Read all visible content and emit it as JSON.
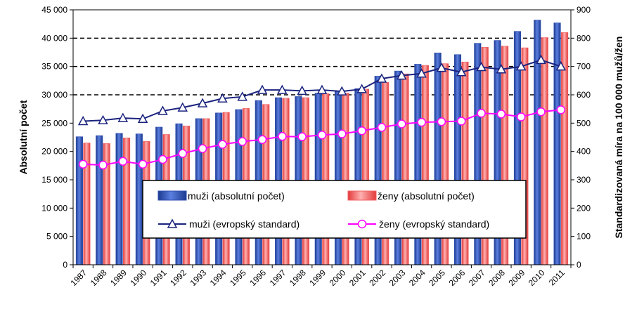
{
  "chart_data": {
    "type": "bar",
    "categories": [
      "1987",
      "1988",
      "1989",
      "1990",
      "1991",
      "1992",
      "1993",
      "1994",
      "1995",
      "1996",
      "1997",
      "1998",
      "1999",
      "2000",
      "2001",
      "2002",
      "2003",
      "2004",
      "2005",
      "2006",
      "2007",
      "2008",
      "2009",
      "2010",
      "2011"
    ],
    "series": [
      {
        "name": "muži (absolutní počet)",
        "type": "bar",
        "axis": "left",
        "color": "#2e4fb0",
        "values": [
          22600,
          22800,
          23200,
          23100,
          24300,
          24900,
          25800,
          26800,
          27400,
          29000,
          29500,
          29700,
          30300,
          30600,
          31100,
          33300,
          34200,
          35400,
          37400,
          37100,
          39100,
          39600,
          41200,
          43200,
          42700
        ]
      },
      {
        "name": "ženy (absolutní počet)",
        "type": "bar",
        "axis": "left",
        "color": "#f26060",
        "values": [
          21500,
          21400,
          22400,
          21800,
          23000,
          24500,
          25800,
          26900,
          27600,
          28300,
          29400,
          29500,
          30200,
          30300,
          31000,
          32200,
          33700,
          35200,
          35500,
          35800,
          38400,
          38600,
          38300,
          40100,
          41000
        ]
      },
      {
        "name": "muži (evropský standard)",
        "type": "line",
        "axis": "right",
        "color": "#1a237e",
        "marker": "triangle",
        "values": [
          507,
          510,
          518,
          515,
          543,
          555,
          570,
          587,
          593,
          617,
          617,
          614,
          617,
          612,
          620,
          657,
          668,
          675,
          695,
          680,
          698,
          690,
          700,
          723,
          700
        ]
      },
      {
        "name": "ženy (evropský standard)",
        "type": "line",
        "axis": "right",
        "color": "#ff00ff",
        "marker": "circle",
        "values": [
          355,
          352,
          365,
          355,
          372,
          393,
          410,
          425,
          435,
          442,
          453,
          452,
          458,
          462,
          473,
          485,
          497,
          503,
          505,
          507,
          535,
          532,
          522,
          540,
          547
        ]
      }
    ],
    "y_left": {
      "label": "Absolutní počet",
      "range": [
        0,
        45000
      ],
      "ticks": [
        "0",
        "5 000",
        "10 000",
        "15 000",
        "20 000",
        "25 000",
        "30 000",
        "35 000",
        "40 000",
        "45 000"
      ],
      "tick_values": [
        0,
        5000,
        10000,
        15000,
        20000,
        25000,
        30000,
        35000,
        40000,
        45000
      ]
    },
    "y_right": {
      "label": "Standardizovaná míra na 100 000 mužů/žen",
      "range": [
        0,
        900
      ],
      "ticks": [
        "0",
        "100",
        "200",
        "300",
        "400",
        "500",
        "600",
        "700",
        "800",
        "900"
      ],
      "tick_values": [
        0,
        100,
        200,
        300,
        400,
        500,
        600,
        700,
        800,
        900
      ]
    },
    "dashed_gridlines_left": [
      30000,
      35000,
      40000
    ],
    "legend_position": "inside-bottom-center",
    "legend_order": [
      0,
      1,
      2,
      3
    ]
  }
}
